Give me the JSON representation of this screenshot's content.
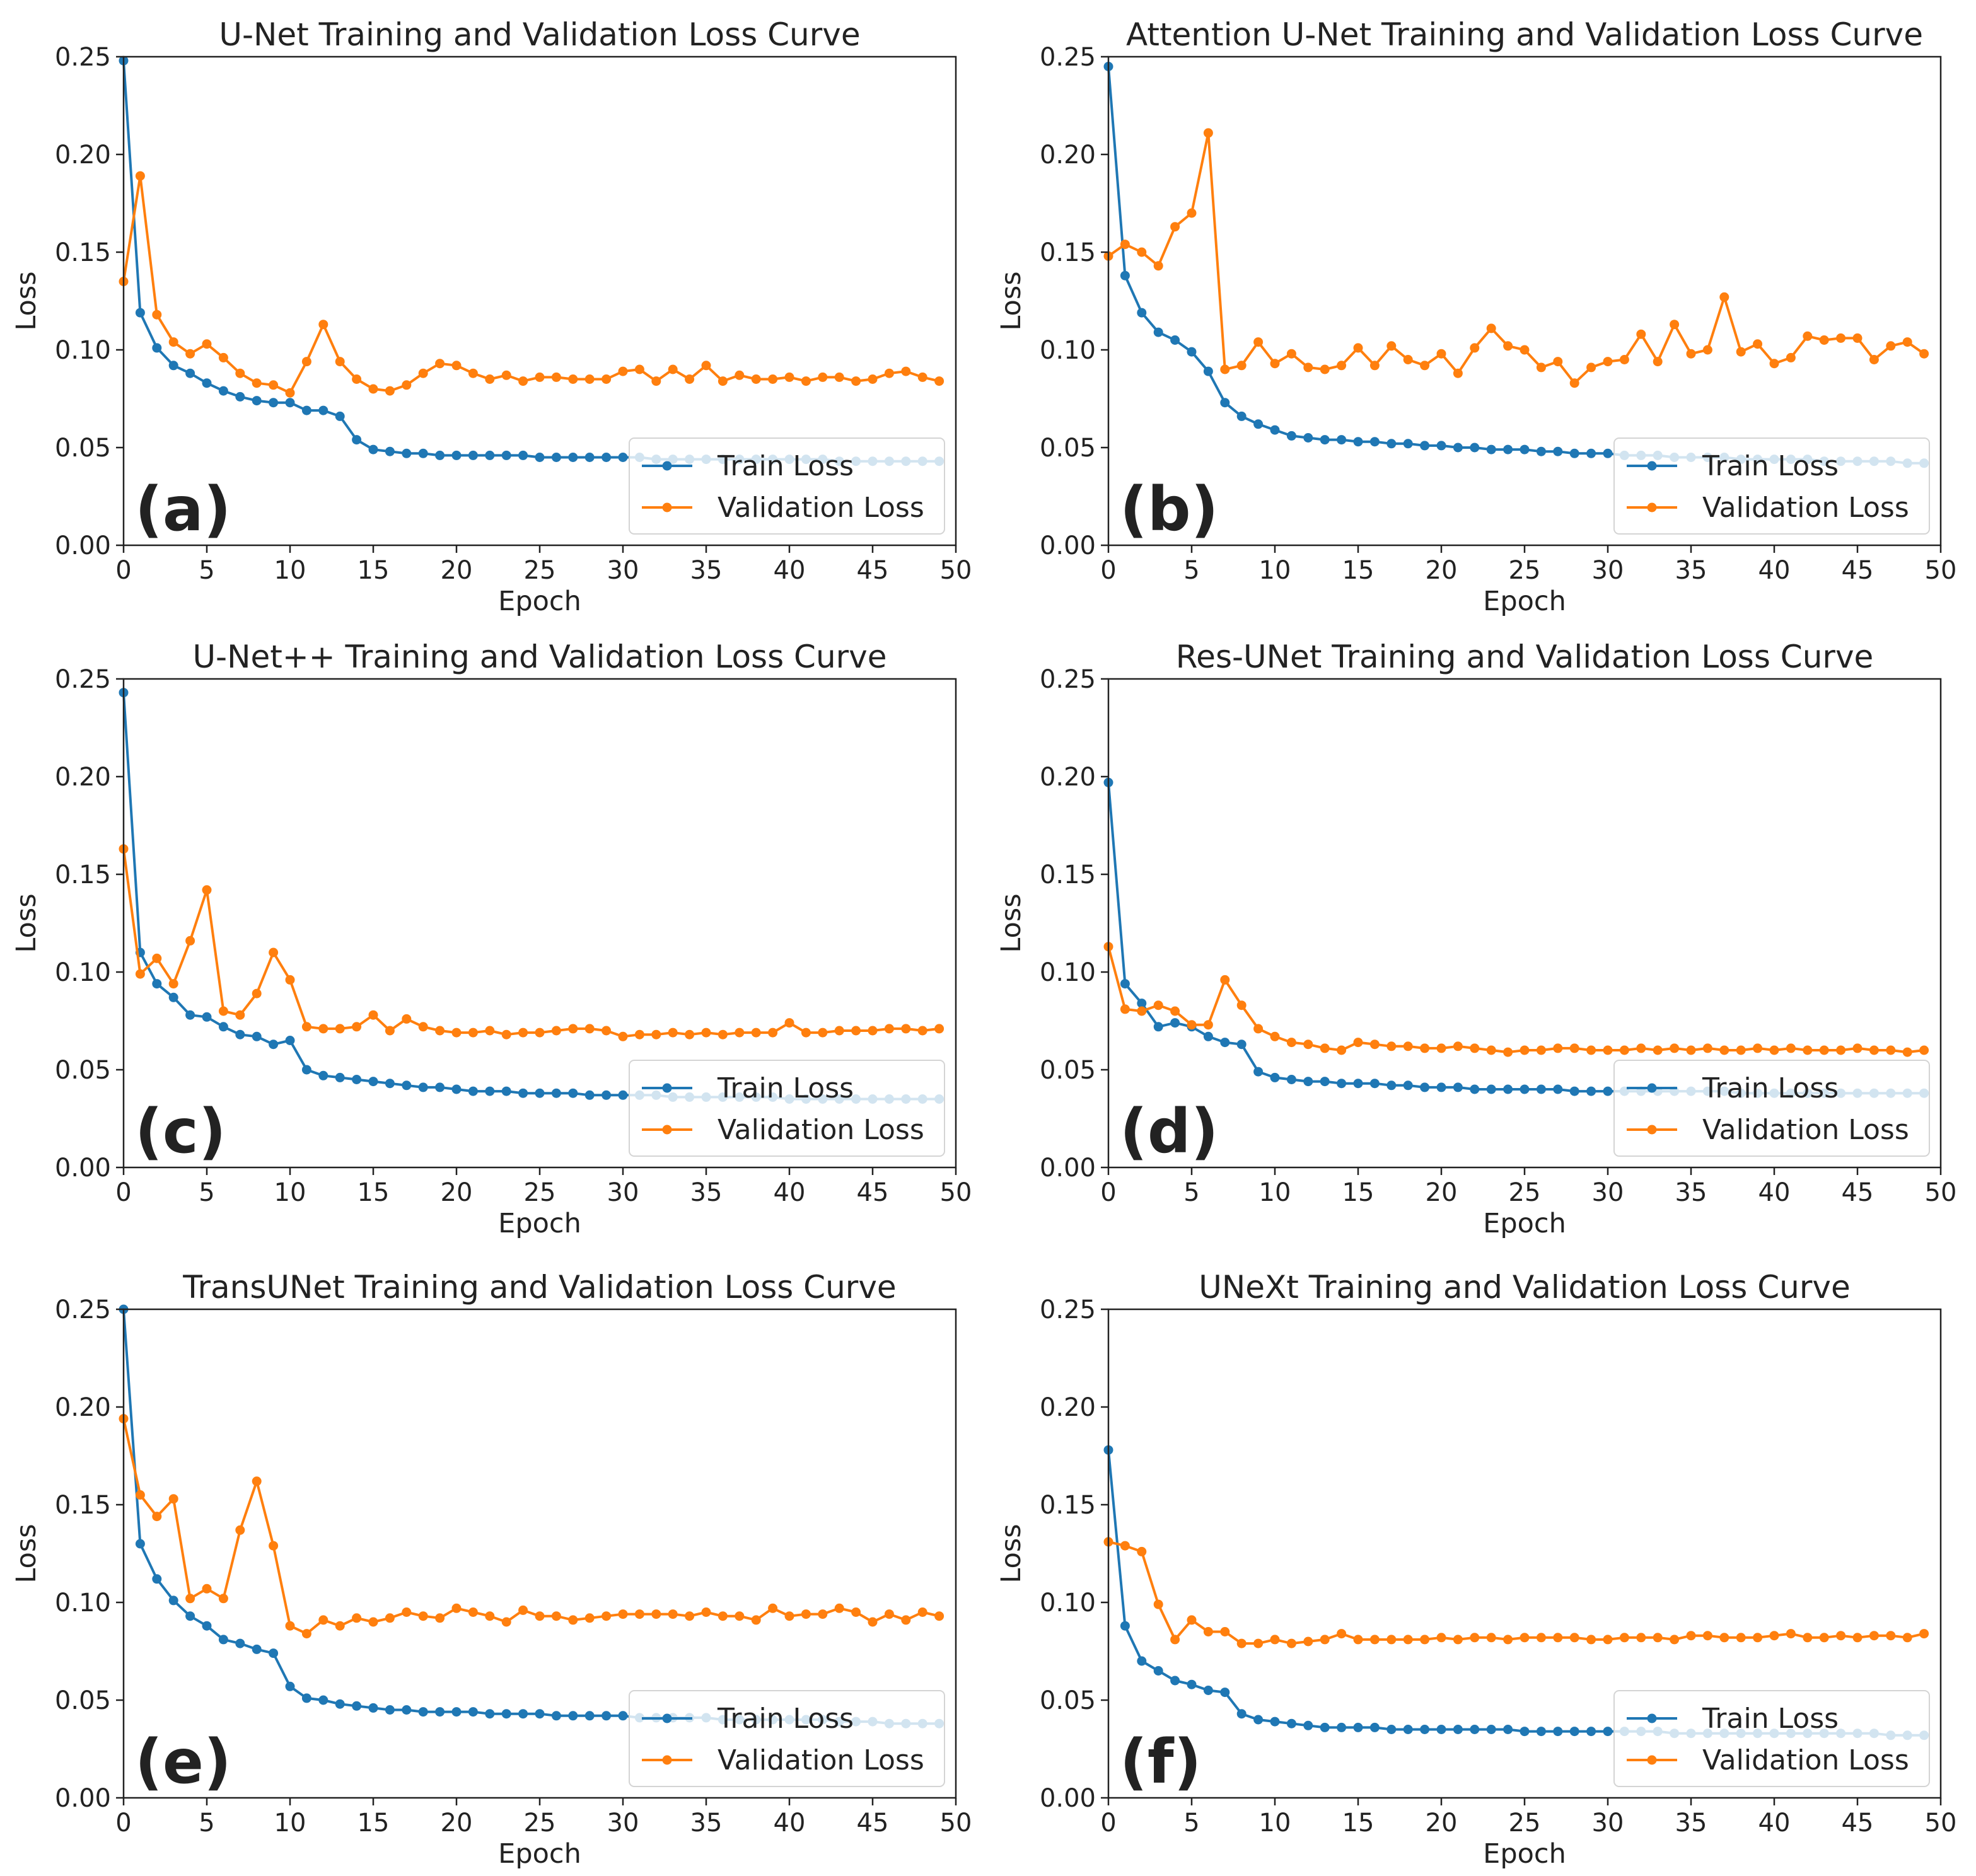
{
  "colors": {
    "train": "#1f77b4",
    "validation": "#ff7f0e",
    "axis": "#222222"
  },
  "chart_data": [
    {
      "type": "line",
      "panel": "(a)",
      "title": "U-Net Training and Validation Loss Curve",
      "xlabel": "Epoch",
      "ylabel": "Loss",
      "xlim": [
        0,
        50
      ],
      "ylim": [
        0,
        0.25
      ],
      "xticks": [
        "0",
        "5",
        "10",
        "15",
        "20",
        "25",
        "30",
        "35",
        "40",
        "45",
        "50"
      ],
      "yticks": [
        "0.00",
        "0.05",
        "0.10",
        "0.15",
        "0.20",
        "0.25"
      ],
      "legend": "lower-right",
      "series": [
        {
          "name": "Train Loss",
          "values": [
            0.248,
            0.119,
            0.101,
            0.092,
            0.088,
            0.083,
            0.079,
            0.076,
            0.074,
            0.073,
            0.073,
            0.069,
            0.069,
            0.066,
            0.054,
            0.049,
            0.048,
            0.047,
            0.047,
            0.046,
            0.046,
            0.046,
            0.046,
            0.046,
            0.046,
            0.045,
            0.045,
            0.045,
            0.045,
            0.045,
            0.045,
            0.045,
            0.044,
            0.044,
            0.044,
            0.044,
            0.044,
            0.044,
            0.044,
            0.044,
            0.044,
            0.044,
            0.044,
            0.043,
            0.043,
            0.043,
            0.043,
            0.043,
            0.043,
            0.043
          ]
        },
        {
          "name": "Validation Loss",
          "values": [
            0.135,
            0.189,
            0.118,
            0.104,
            0.098,
            0.103,
            0.096,
            0.088,
            0.083,
            0.082,
            0.078,
            0.094,
            0.113,
            0.094,
            0.085,
            0.08,
            0.079,
            0.082,
            0.088,
            0.093,
            0.092,
            0.088,
            0.085,
            0.087,
            0.084,
            0.086,
            0.086,
            0.085,
            0.085,
            0.085,
            0.089,
            0.09,
            0.084,
            0.09,
            0.085,
            0.092,
            0.084,
            0.087,
            0.085,
            0.085,
            0.086,
            0.084,
            0.086,
            0.086,
            0.084,
            0.085,
            0.088,
            0.089,
            0.086,
            0.084
          ]
        }
      ]
    },
    {
      "type": "line",
      "panel": "(b)",
      "title": "Attention U-Net Training and Validation Loss Curve",
      "xlabel": "Epoch",
      "ylabel": "Loss",
      "xlim": [
        0,
        50
      ],
      "ylim": [
        0,
        0.25
      ],
      "xticks": [
        "0",
        "5",
        "10",
        "15",
        "20",
        "25",
        "30",
        "35",
        "40",
        "45",
        "50"
      ],
      "yticks": [
        "0.00",
        "0.05",
        "0.10",
        "0.15",
        "0.20",
        "0.25"
      ],
      "legend": "lower-right",
      "series": [
        {
          "name": "Train Loss",
          "values": [
            0.245,
            0.138,
            0.119,
            0.109,
            0.105,
            0.099,
            0.089,
            0.073,
            0.066,
            0.062,
            0.059,
            0.056,
            0.055,
            0.054,
            0.054,
            0.053,
            0.053,
            0.052,
            0.052,
            0.051,
            0.051,
            0.05,
            0.05,
            0.049,
            0.049,
            0.049,
            0.048,
            0.048,
            0.047,
            0.047,
            0.047,
            0.046,
            0.046,
            0.046,
            0.045,
            0.045,
            0.045,
            0.045,
            0.044,
            0.044,
            0.044,
            0.044,
            0.044,
            0.043,
            0.043,
            0.043,
            0.043,
            0.043,
            0.042,
            0.042
          ]
        },
        {
          "name": "Validation Loss",
          "values": [
            0.148,
            0.154,
            0.15,
            0.143,
            0.163,
            0.17,
            0.211,
            0.09,
            0.092,
            0.104,
            0.093,
            0.098,
            0.091,
            0.09,
            0.092,
            0.101,
            0.092,
            0.102,
            0.095,
            0.092,
            0.098,
            0.088,
            0.101,
            0.111,
            0.102,
            0.1,
            0.091,
            0.094,
            0.083,
            0.091,
            0.094,
            0.095,
            0.108,
            0.094,
            0.113,
            0.098,
            0.1,
            0.127,
            0.099,
            0.103,
            0.093,
            0.096,
            0.107,
            0.105,
            0.106,
            0.106,
            0.095,
            0.102,
            0.104,
            0.098
          ]
        }
      ]
    },
    {
      "type": "line",
      "panel": "(c)",
      "title": "U-Net++ Training and Validation Loss Curve",
      "xlabel": "Epoch",
      "ylabel": "Loss",
      "xlim": [
        0,
        50
      ],
      "ylim": [
        0,
        0.25
      ],
      "xticks": [
        "0",
        "5",
        "10",
        "15",
        "20",
        "25",
        "30",
        "35",
        "40",
        "45",
        "50"
      ],
      "yticks": [
        "0.00",
        "0.05",
        "0.10",
        "0.15",
        "0.20",
        "0.25"
      ],
      "legend": "lower-right",
      "series": [
        {
          "name": "Train Loss",
          "values": [
            0.243,
            0.11,
            0.094,
            0.087,
            0.078,
            0.077,
            0.072,
            0.068,
            0.067,
            0.063,
            0.065,
            0.05,
            0.047,
            0.046,
            0.045,
            0.044,
            0.043,
            0.042,
            0.041,
            0.041,
            0.04,
            0.039,
            0.039,
            0.039,
            0.038,
            0.038,
            0.038,
            0.038,
            0.037,
            0.037,
            0.037,
            0.037,
            0.037,
            0.036,
            0.036,
            0.036,
            0.036,
            0.036,
            0.036,
            0.036,
            0.035,
            0.035,
            0.035,
            0.035,
            0.035,
            0.035,
            0.035,
            0.035,
            0.035,
            0.035
          ]
        },
        {
          "name": "Validation Loss",
          "values": [
            0.163,
            0.099,
            0.107,
            0.094,
            0.116,
            0.142,
            0.08,
            0.078,
            0.089,
            0.11,
            0.096,
            0.072,
            0.071,
            0.071,
            0.072,
            0.078,
            0.07,
            0.076,
            0.072,
            0.07,
            0.069,
            0.069,
            0.07,
            0.068,
            0.069,
            0.069,
            0.07,
            0.071,
            0.071,
            0.07,
            0.067,
            0.068,
            0.068,
            0.069,
            0.068,
            0.069,
            0.068,
            0.069,
            0.069,
            0.069,
            0.074,
            0.069,
            0.069,
            0.07,
            0.07,
            0.07,
            0.071,
            0.071,
            0.07,
            0.071
          ]
        }
      ]
    },
    {
      "type": "line",
      "panel": "(d)",
      "title": "Res-UNet Training and Validation Loss Curve",
      "xlabel": "Epoch",
      "ylabel": "Loss",
      "xlim": [
        0,
        50
      ],
      "ylim": [
        0,
        0.25
      ],
      "xticks": [
        "0",
        "5",
        "10",
        "15",
        "20",
        "25",
        "30",
        "35",
        "40",
        "45",
        "50"
      ],
      "yticks": [
        "0.00",
        "0.05",
        "0.10",
        "0.15",
        "0.20",
        "0.25"
      ],
      "legend": "lower-right",
      "series": [
        {
          "name": "Train Loss",
          "values": [
            0.197,
            0.094,
            0.084,
            0.072,
            0.074,
            0.072,
            0.067,
            0.064,
            0.063,
            0.049,
            0.046,
            0.045,
            0.044,
            0.044,
            0.043,
            0.043,
            0.043,
            0.042,
            0.042,
            0.041,
            0.041,
            0.041,
            0.04,
            0.04,
            0.04,
            0.04,
            0.04,
            0.04,
            0.039,
            0.039,
            0.039,
            0.039,
            0.039,
            0.039,
            0.039,
            0.039,
            0.039,
            0.039,
            0.038,
            0.038,
            0.038,
            0.038,
            0.038,
            0.038,
            0.038,
            0.038,
            0.038,
            0.038,
            0.038,
            0.038
          ]
        },
        {
          "name": "Validation Loss",
          "values": [
            0.113,
            0.081,
            0.08,
            0.083,
            0.08,
            0.073,
            0.073,
            0.096,
            0.083,
            0.071,
            0.067,
            0.064,
            0.063,
            0.061,
            0.06,
            0.064,
            0.063,
            0.062,
            0.062,
            0.061,
            0.061,
            0.062,
            0.061,
            0.06,
            0.059,
            0.06,
            0.06,
            0.061,
            0.061,
            0.06,
            0.06,
            0.06,
            0.061,
            0.06,
            0.061,
            0.06,
            0.061,
            0.06,
            0.06,
            0.061,
            0.06,
            0.061,
            0.06,
            0.06,
            0.06,
            0.061,
            0.06,
            0.06,
            0.059,
            0.06
          ]
        }
      ]
    },
    {
      "type": "line",
      "panel": "(e)",
      "title": "TransUNet Training and Validation Loss Curve",
      "xlabel": "Epoch",
      "ylabel": "Loss",
      "xlim": [
        0,
        50
      ],
      "ylim": [
        0,
        0.25
      ],
      "xticks": [
        "0",
        "5",
        "10",
        "15",
        "20",
        "25",
        "30",
        "35",
        "40",
        "45",
        "50"
      ],
      "yticks": [
        "0.00",
        "0.05",
        "0.10",
        "0.15",
        "0.20",
        "0.25"
      ],
      "legend": "lower-right",
      "series": [
        {
          "name": "Train Loss",
          "values": [
            0.25,
            0.13,
            0.112,
            0.101,
            0.093,
            0.088,
            0.081,
            0.079,
            0.076,
            0.074,
            0.057,
            0.051,
            0.05,
            0.048,
            0.047,
            0.046,
            0.045,
            0.045,
            0.044,
            0.044,
            0.044,
            0.044,
            0.043,
            0.043,
            0.043,
            0.043,
            0.042,
            0.042,
            0.042,
            0.042,
            0.042,
            0.041,
            0.041,
            0.041,
            0.041,
            0.041,
            0.04,
            0.04,
            0.04,
            0.04,
            0.04,
            0.04,
            0.04,
            0.039,
            0.039,
            0.039,
            0.038,
            0.038,
            0.038,
            0.038
          ]
        },
        {
          "name": "Validation Loss",
          "values": [
            0.194,
            0.155,
            0.144,
            0.153,
            0.102,
            0.107,
            0.102,
            0.137,
            0.162,
            0.129,
            0.088,
            0.084,
            0.091,
            0.088,
            0.092,
            0.09,
            0.092,
            0.095,
            0.093,
            0.092,
            0.097,
            0.095,
            0.093,
            0.09,
            0.096,
            0.093,
            0.093,
            0.091,
            0.092,
            0.093,
            0.094,
            0.094,
            0.094,
            0.094,
            0.093,
            0.095,
            0.093,
            0.093,
            0.091,
            0.097,
            0.093,
            0.094,
            0.094,
            0.097,
            0.095,
            0.09,
            0.094,
            0.091,
            0.095,
            0.093
          ]
        }
      ]
    },
    {
      "type": "line",
      "panel": "(f)",
      "title": "UNeXt Training and Validation Loss Curve",
      "xlabel": "Epoch",
      "ylabel": "Loss",
      "xlim": [
        0,
        50
      ],
      "ylim": [
        0,
        0.25
      ],
      "xticks": [
        "0",
        "5",
        "10",
        "15",
        "20",
        "25",
        "30",
        "35",
        "40",
        "45",
        "50"
      ],
      "yticks": [
        "0.00",
        "0.05",
        "0.10",
        "0.15",
        "0.20",
        "0.25"
      ],
      "legend": "lower-right",
      "series": [
        {
          "name": "Train Loss",
          "values": [
            0.178,
            0.088,
            0.07,
            0.065,
            0.06,
            0.058,
            0.055,
            0.054,
            0.043,
            0.04,
            0.039,
            0.038,
            0.037,
            0.036,
            0.036,
            0.036,
            0.036,
            0.035,
            0.035,
            0.035,
            0.035,
            0.035,
            0.035,
            0.035,
            0.035,
            0.034,
            0.034,
            0.034,
            0.034,
            0.034,
            0.034,
            0.034,
            0.034,
            0.034,
            0.033,
            0.033,
            0.033,
            0.033,
            0.033,
            0.033,
            0.033,
            0.033,
            0.033,
            0.033,
            0.033,
            0.033,
            0.033,
            0.032,
            0.032,
            0.032
          ]
        },
        {
          "name": "Validation Loss",
          "values": [
            0.131,
            0.129,
            0.126,
            0.099,
            0.081,
            0.091,
            0.085,
            0.085,
            0.079,
            0.079,
            0.081,
            0.079,
            0.08,
            0.081,
            0.084,
            0.081,
            0.081,
            0.081,
            0.081,
            0.081,
            0.082,
            0.081,
            0.082,
            0.082,
            0.081,
            0.082,
            0.082,
            0.082,
            0.082,
            0.081,
            0.081,
            0.082,
            0.082,
            0.082,
            0.081,
            0.083,
            0.083,
            0.082,
            0.082,
            0.082,
            0.083,
            0.084,
            0.082,
            0.082,
            0.083,
            0.082,
            0.083,
            0.083,
            0.082,
            0.084
          ]
        }
      ]
    }
  ]
}
